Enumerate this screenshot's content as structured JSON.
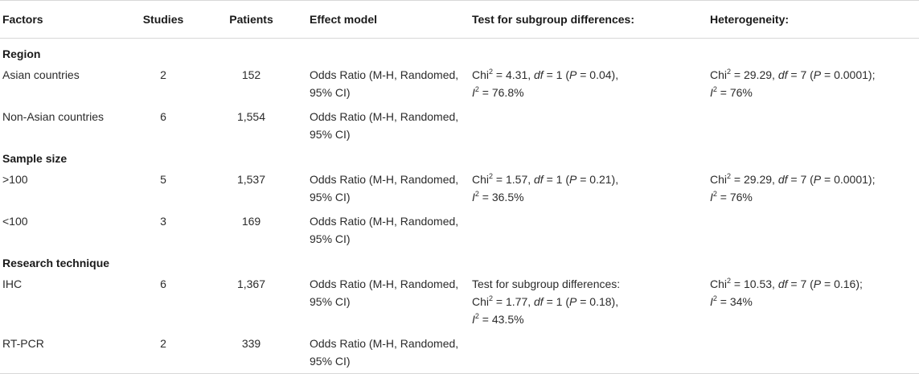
{
  "header": {
    "factors": "Factors",
    "studies": "Studies",
    "patients": "Patients",
    "effect_model": "Effect model",
    "test": "Test for subgroup differences:",
    "heterogeneity": "Heterogeneity:"
  },
  "groups": {
    "region": "Region",
    "sample_size": "Sample size",
    "technique": "Research technique"
  },
  "model_text": "Odds Ratio (M-H, Randomed, 95% CI)",
  "rows": {
    "asian": {
      "factor": "Asian countries",
      "studies": "2",
      "patients": "152"
    },
    "non_asian": {
      "factor": "Non-Asian countries",
      "studies": "6",
      "patients": "1,554"
    },
    "gt100": {
      "factor": ">100",
      "studies": "5",
      "patients": "1,537"
    },
    "lt100": {
      "factor": "<100",
      "studies": "3",
      "patients": "169"
    },
    "ihc": {
      "factor": "IHC",
      "studies": "6",
      "patients": "1,367"
    },
    "rtpcr": {
      "factor": "RT-PCR",
      "studies": "2",
      "patients": "339"
    }
  },
  "stats": {
    "chi": "Chi",
    "sq": "2",
    "df": "df",
    "p": "P",
    "i": "I",
    "region_test": {
      "chi_val": " = 4.31, ",
      "df_val": " = 1 (",
      "p_val": " = 0.04),",
      "i_val": " = 76.8%"
    },
    "region_het": {
      "chi_val": " = 29.29, ",
      "df_val": " = 7 (",
      "p_val": " = 0.0001);",
      "i_val": " = 76%"
    },
    "size_test": {
      "chi_val": " = 1.57, ",
      "df_val": " = 1 (",
      "p_val": " = 0.21),",
      "i_val": " = 36.5%"
    },
    "size_het": {
      "chi_val": " = 29.29, ",
      "df_val": " = 7 (",
      "p_val": " = 0.0001);",
      "i_val": " = 76%"
    },
    "tech_test_label": "Test for subgroup differences:",
    "tech_test": {
      "chi_val": " = 1.77, ",
      "df_val": " = 1 (",
      "p_val": " = 0.18),",
      "i_val": " = 43.5%"
    },
    "tech_het": {
      "chi_val": " = 10.53, ",
      "df_val": " = 7 (",
      "p_val": " = 0.16);",
      "i_val": " = 34%"
    }
  }
}
